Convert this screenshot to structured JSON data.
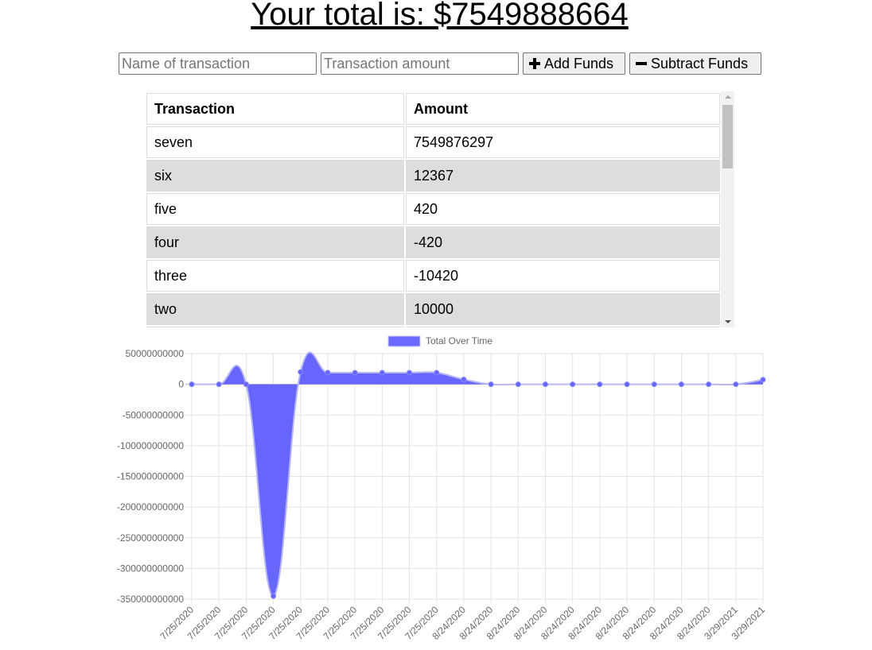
{
  "header": {
    "total_label": "Your total is: $7549888664"
  },
  "form": {
    "name_placeholder": "Name of transaction",
    "amount_placeholder": "Transaction amount",
    "add_label": "Add Funds",
    "subtract_label": "Subtract Funds",
    "add_icon": "plus-icon",
    "subtract_icon": "minus-icon"
  },
  "table": {
    "headers": [
      "Transaction",
      "Amount"
    ],
    "rows": [
      {
        "name": "seven",
        "amount": "7549876297"
      },
      {
        "name": "six",
        "amount": "12367"
      },
      {
        "name": "five",
        "amount": "420"
      },
      {
        "name": "four",
        "amount": "-420"
      },
      {
        "name": "three",
        "amount": "-10420"
      },
      {
        "name": "two",
        "amount": "10000"
      }
    ]
  },
  "chart_data": {
    "type": "area",
    "legend": {
      "label": "Total Over Time",
      "position": "top",
      "color": "#6a6aff"
    },
    "fill_color": "#6666ff",
    "grid": true,
    "ylim": [
      -350000000000,
      50000000000
    ],
    "y_ticks": [
      "50000000000",
      "0",
      "-50000000000",
      "-100000000000",
      "-150000000000",
      "-200000000000",
      "-250000000000",
      "-300000000000",
      "-350000000000"
    ],
    "x": [
      "7/25/2020",
      "7/25/2020",
      "7/25/2020",
      "7/25/2020",
      "7/25/2020",
      "7/25/2020",
      "7/25/2020",
      "7/25/2020",
      "7/25/2020",
      "7/25/2020",
      "8/24/2020",
      "8/24/2020",
      "8/24/2020",
      "8/24/2020",
      "8/24/2020",
      "8/24/2020",
      "8/24/2020",
      "8/24/2020",
      "8/24/2020",
      "8/24/2020",
      "3/29/2021",
      "3/29/2021"
    ],
    "series": [
      {
        "name": "Total Over Time",
        "values": [
          0,
          0,
          0,
          -345000000000,
          20000000000,
          19000000000,
          19000000000,
          19000000000,
          19000000000,
          19000000000,
          8000000000,
          0,
          0,
          0,
          0,
          0,
          0,
          0,
          0,
          0,
          0,
          7549888664
        ]
      }
    ]
  }
}
